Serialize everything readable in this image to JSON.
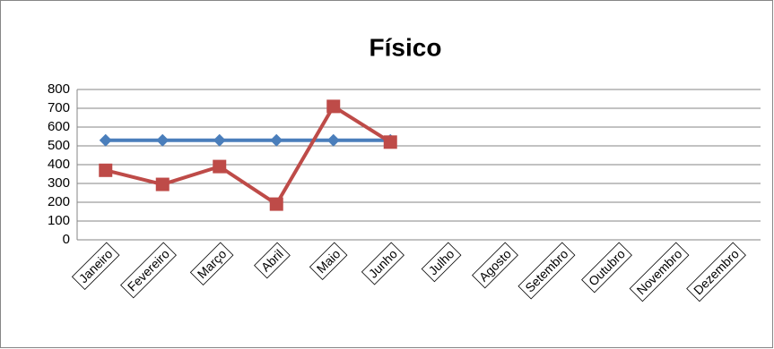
{
  "chart_data": {
    "type": "line",
    "title": "Físico",
    "categories": [
      "Janeiro",
      "Fevereiro",
      "Março",
      "Abril",
      "Maio",
      "Junho",
      "Julho",
      "Agosto",
      "Setembro",
      "Outubro",
      "Novembro",
      "Dezembro"
    ],
    "series": [
      {
        "color": "#4a7ebb",
        "marker": "diamond",
        "values": [
          530,
          530,
          530,
          530,
          530,
          530,
          null,
          null,
          null,
          null,
          null,
          null
        ]
      },
      {
        "color": "#be4b48",
        "marker": "square",
        "values": [
          370,
          295,
          390,
          190,
          710,
          520,
          null,
          null,
          null,
          null,
          null,
          null
        ]
      }
    ],
    "ylim": [
      0,
      800
    ],
    "yticks": [
      0,
      100,
      200,
      300,
      400,
      500,
      600,
      700,
      800
    ],
    "grid": true
  }
}
